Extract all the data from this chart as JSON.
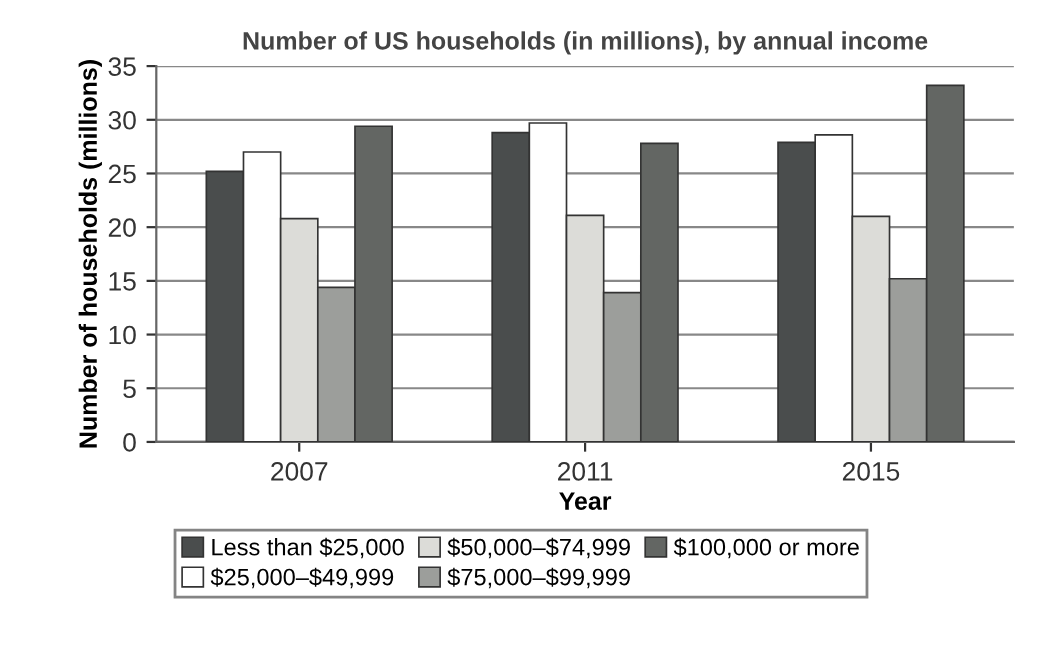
{
  "chart_data": {
    "type": "bar",
    "title": "Number of US households (in millions), by annual income",
    "xlabel": "Year",
    "ylabel": "Number of households (millions)",
    "categories": [
      "2007",
      "2011",
      "2015"
    ],
    "series": [
      {
        "name": "Less than $25,000",
        "color": "#4a4d4d",
        "values": [
          25.2,
          28.8,
          27.9
        ]
      },
      {
        "name": "$25,000–$49,999",
        "color": "#ffffff",
        "values": [
          27,
          29.7,
          28.6
        ]
      },
      {
        "name": "$50,000–$74,999",
        "color": "#dcdcd8",
        "values": [
          20.8,
          21.1,
          21
        ]
      },
      {
        "name": "$75,000–$99,999",
        "color": "#9c9e9b",
        "values": [
          14.4,
          13.9,
          15.2
        ]
      },
      {
        "name": "$100,000 or more",
        "color": "#636663",
        "values": [
          29.4,
          27.8,
          33.2
        ]
      }
    ],
    "ylim": [
      0,
      35
    ],
    "yticks": [
      0,
      5,
      10,
      15,
      20,
      25,
      30,
      35
    ],
    "grid": "y",
    "legend": "bottom"
  }
}
